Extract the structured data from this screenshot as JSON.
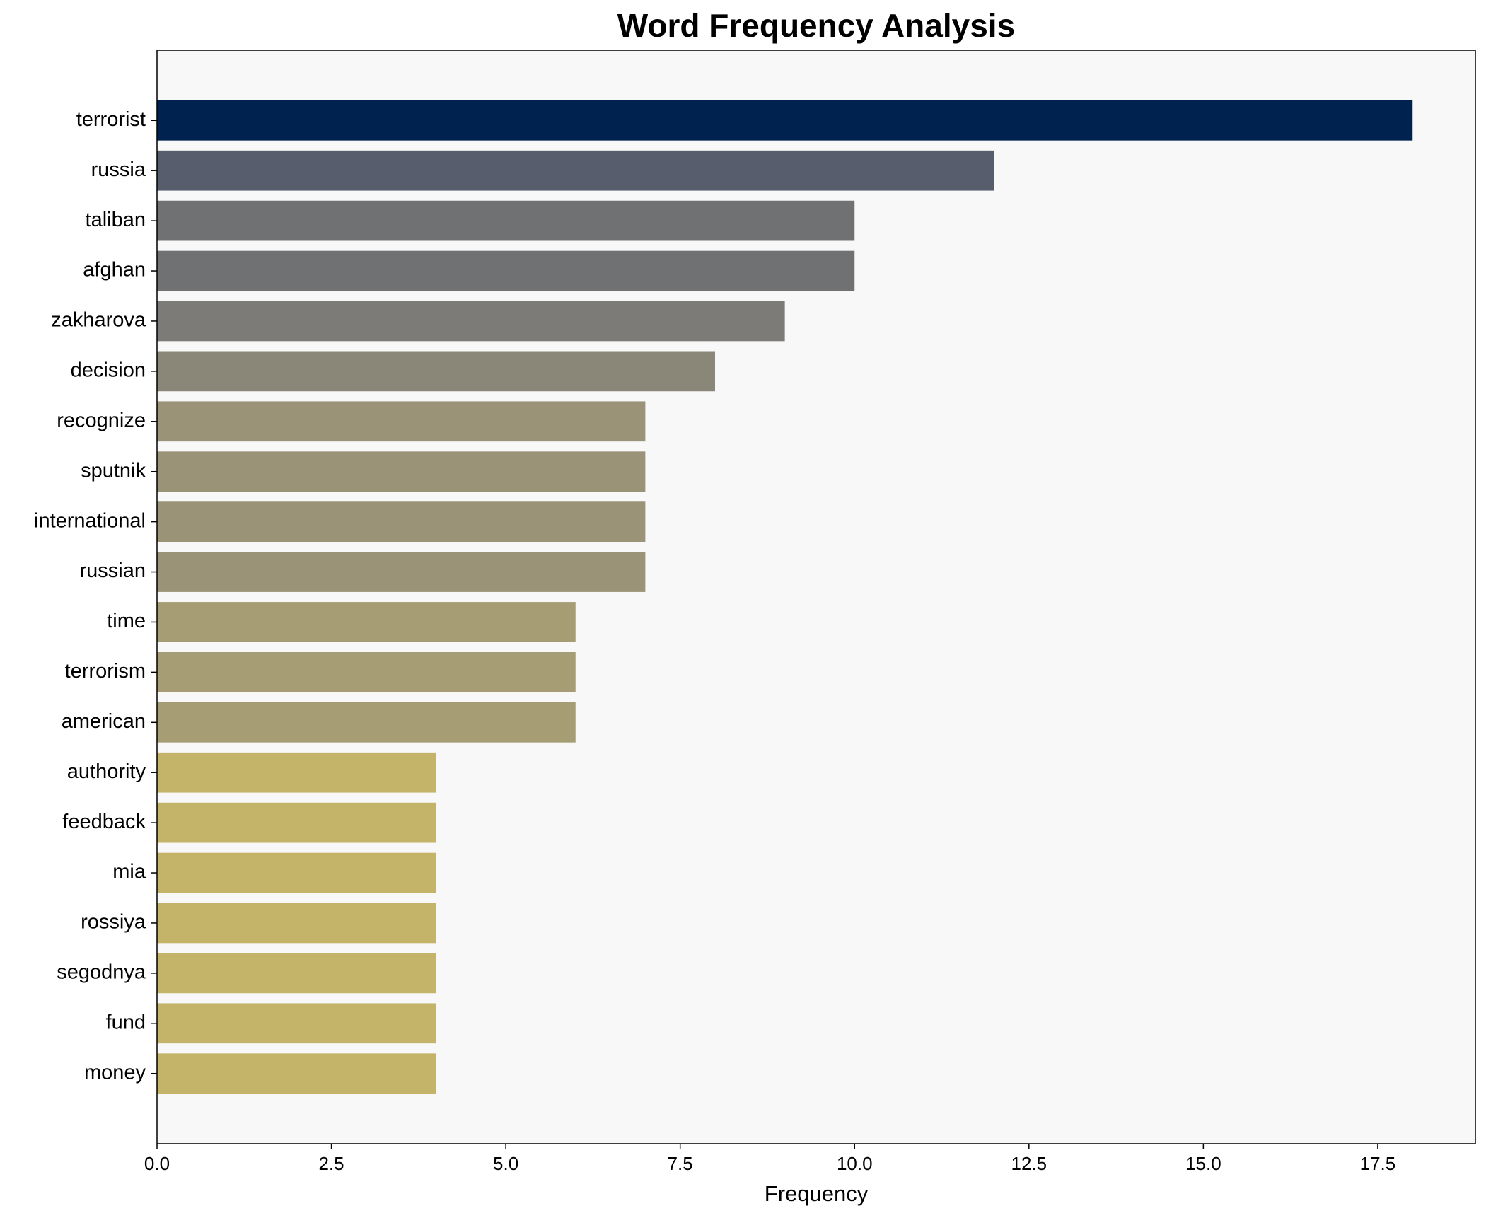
{
  "chart_data": {
    "type": "barh",
    "title": "Word Frequency Analysis",
    "x_label": "Frequency",
    "categories": [
      "terrorist",
      "russia",
      "taliban",
      "afghan",
      "zakharova",
      "decision",
      "recognize",
      "sputnik",
      "international",
      "russian",
      "time",
      "terrorism",
      "american",
      "authority",
      "feedback",
      "mia",
      "rossiya",
      "segodnya",
      "fund",
      "money"
    ],
    "values": [
      18,
      12,
      10,
      10,
      9,
      8,
      7,
      7,
      7,
      7,
      6,
      6,
      6,
      4,
      4,
      4,
      4,
      4,
      4,
      4
    ],
    "colors": [
      "#00224e",
      "#575d6d",
      "#707173",
      "#707173",
      "#7c7b78",
      "#8a8779",
      "#9a9377",
      "#9a9377",
      "#9a9377",
      "#9a9377",
      "#a69d75",
      "#a69d75",
      "#a69d75",
      "#c4b46a",
      "#c4b46a",
      "#c4b46a",
      "#c4b46a",
      "#c4b46a",
      "#c4b46a",
      "#c4b46a"
    ],
    "xlim": [
      0,
      18.9
    ],
    "xticks": [
      {
        "value": 0,
        "label": "0.0"
      },
      {
        "value": 2.5,
        "label": "2.5"
      },
      {
        "value": 5,
        "label": "5.0"
      },
      {
        "value": 7.5,
        "label": "7.5"
      },
      {
        "value": 10,
        "label": "10.0"
      },
      {
        "value": 12.5,
        "label": "12.5"
      },
      {
        "value": 15,
        "label": "15.0"
      },
      {
        "value": 17.5,
        "label": "17.5"
      }
    ],
    "grid": false
  }
}
